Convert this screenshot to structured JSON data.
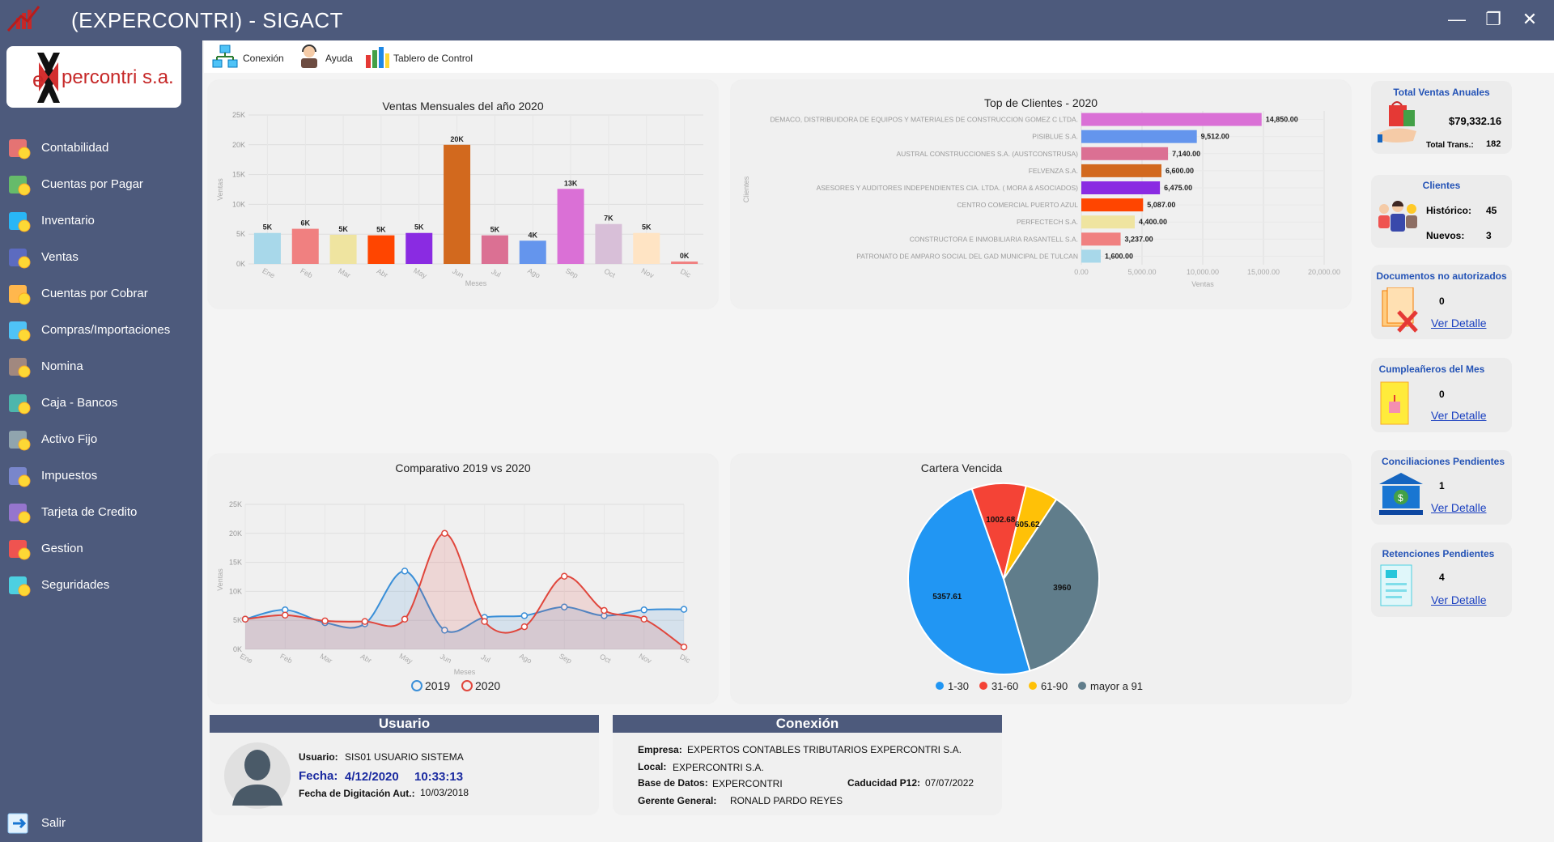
{
  "window": {
    "title": "(EXPERCONTRI) - SIGACT",
    "controls": [
      "—",
      "❐",
      "✕"
    ]
  },
  "logo": {
    "text_e": "e",
    "text_rest": "percontri s.a."
  },
  "sidebar": {
    "items": [
      {
        "label": "Contabilidad",
        "icon": "calculator-icon"
      },
      {
        "label": "Cuentas por Pagar",
        "icon": "money-bag-icon"
      },
      {
        "label": "Inventario",
        "icon": "inventory-icon"
      },
      {
        "label": "Ventas",
        "icon": "sales-icon"
      },
      {
        "label": "Cuentas por Cobrar",
        "icon": "hand-coin-icon"
      },
      {
        "label": "Compras/Importaciones",
        "icon": "computer-icon"
      },
      {
        "label": "Nomina",
        "icon": "payroll-icon"
      },
      {
        "label": "Caja - Bancos",
        "icon": "cash-icon"
      },
      {
        "label": "Activo Fijo",
        "icon": "desk-icon"
      },
      {
        "label": "Impuestos",
        "icon": "tax-icon"
      },
      {
        "label": "Tarjeta de Credito",
        "icon": "credit-card-icon"
      },
      {
        "label": "Gestion",
        "icon": "pie-icon"
      },
      {
        "label": "Seguridades",
        "icon": "monitor-icon"
      }
    ],
    "exit_label": "Salir"
  },
  "toolbar": {
    "conexion": "Conexión",
    "ayuda": "Ayuda",
    "tablero": "Tablero de Control"
  },
  "colors": {
    "titlebar": "#4d5a7c",
    "sidebar": "#4d5a7c",
    "kpi_title": "#2453b6",
    "link": "#1a40c0"
  },
  "chart_data": [
    {
      "type": "bar",
      "title": "Ventas Mensuales del año 2020",
      "xlabel": "Meses",
      "ylabel": "Ventas",
      "categories": [
        "Ene",
        "Feb",
        "Mar",
        "Abr",
        "May",
        "Jun",
        "Jul",
        "Ago",
        "Sep",
        "Oct",
        "Nov",
        "Dic"
      ],
      "values": [
        5200,
        5900,
        4900,
        4800,
        5200,
        20000,
        4800,
        3900,
        12600,
        6700,
        5200,
        400
      ],
      "data_labels": [
        "5K",
        "6K",
        "5K",
        "5K",
        "5K",
        "20K",
        "5K",
        "4K",
        "13K",
        "7K",
        "5K",
        "0K"
      ],
      "colors": [
        "#a8d8ea",
        "#f08080",
        "#efe4a0",
        "#ff4500",
        "#8a2be2",
        "#d2691e",
        "#db7093",
        "#6495ed",
        "#da70d6",
        "#d8bfd8",
        "#ffe4c4",
        "#f08080"
      ],
      "yticks": [
        "0K",
        "5K",
        "10K",
        "15K",
        "20K",
        "25K"
      ],
      "ylim": [
        0,
        25000
      ],
      "grid": true
    },
    {
      "type": "bar",
      "orientation": "horizontal",
      "title": "Top de Clientes - 2020",
      "xlabel": "Ventas",
      "ylabel": "Clientes",
      "categories": [
        "DEMACO, DISTRIBUIDORA DE EQUIPOS Y MATERIALES DE CONSTRUCCION GOMEZ C LTDA.",
        "PISIBLUE S.A.",
        "AUSTRAL CONSTRUCCIONES S.A. (AUSTCONSTRUSA)",
        "FELVENZA S.A.",
        "ASESORES Y AUDITORES INDEPENDIENTES CIA. LTDA. ( MORA & ASOCIADOS)",
        "CENTRO COMERCIAL PUERTO AZUL",
        "PERFECTECH S.A.",
        "CONSTRUCTORA E INMOBILIARIA RASANTELL S.A.",
        "PATRONATO DE AMPARO SOCIAL DEL GAD MUNICIPAL DE TULCAN"
      ],
      "values": [
        14850,
        9512,
        7140,
        6600,
        6475,
        5087,
        4400,
        3237,
        1600
      ],
      "data_labels": [
        "14,850.00",
        "9,512.00",
        "7,140.00",
        "6,600.00",
        "6,475.00",
        "5,087.00",
        "4,400.00",
        "3,237.00",
        "1,600.00"
      ],
      "colors": [
        "#da70d6",
        "#6495ed",
        "#db7093",
        "#d2691e",
        "#8a2be2",
        "#ff4500",
        "#efe4a0",
        "#f08080",
        "#a8d8ea"
      ],
      "xticks": [
        "0.00",
        "5,000.00",
        "10,000.00",
        "15,000.00",
        "20,000.00"
      ],
      "xlim": [
        0,
        20000
      ],
      "grid": true
    },
    {
      "type": "area",
      "title": "Comparativo 2019 vs 2020",
      "xlabel": "Meses",
      "ylabel": "Ventas",
      "categories": [
        "Ene",
        "Feb",
        "Mar",
        "Abr",
        "May",
        "Jun",
        "Jul",
        "Ago",
        "Sep",
        "Oct",
        "Nov",
        "Dic"
      ],
      "series": [
        {
          "name": "2019",
          "color": "#3a8fd8",
          "values": [
            5200,
            6800,
            4600,
            4400,
            13500,
            3300,
            5500,
            5800,
            7300,
            5800,
            6800,
            6900
          ]
        },
        {
          "name": "2020",
          "color": "#e0463c",
          "values": [
            5200,
            5900,
            4900,
            4800,
            5200,
            20000,
            4800,
            3900,
            12600,
            6700,
            5200,
            400
          ]
        }
      ],
      "yticks": [
        "0K",
        "5K",
        "10K",
        "15K",
        "20K",
        "25K"
      ],
      "ylim": [
        0,
        25000
      ],
      "legend": "bottom",
      "grid": true
    },
    {
      "type": "pie",
      "title": "Cartera Vencida",
      "labels": [
        "1-30",
        "31-60",
        "61-90",
        "mayor a 91"
      ],
      "values": [
        5357.61,
        1002.68,
        605.62,
        3960
      ],
      "data_labels": [
        "5357.61",
        "1002.68",
        "605.62",
        "3960"
      ],
      "colors": [
        "#2196f3",
        "#f44336",
        "#ffc107",
        "#607d8b"
      ],
      "legend": "bottom"
    }
  ],
  "kpis": {
    "ventas": {
      "title": "Total Ventas Anuales",
      "amount": "$79,332.16",
      "trans_label": "Total Trans.:",
      "trans_value": "182"
    },
    "clientes": {
      "title": "Clientes",
      "historico_label": "Histórico:",
      "historico_value": "45",
      "nuevos_label": "Nuevos:",
      "nuevos_value": "3"
    },
    "documentos": {
      "title": "Documentos no autorizados",
      "value": "0",
      "link": "Ver Detalle"
    },
    "cumpleanos": {
      "title": "Cumpleañeros del Mes",
      "value": "0",
      "link": "Ver Detalle"
    },
    "conciliaciones": {
      "title": "Conciliaciones Pendientes",
      "value": "1",
      "link": "Ver Detalle"
    },
    "retenciones": {
      "title": "Retenciones Pendientes",
      "value": "4",
      "link": "Ver Detalle"
    }
  },
  "usuario": {
    "header": "Usuario",
    "usuario_label": "Usuario:",
    "usuario_value": "SIS01 USUARIO SISTEMA",
    "fecha_label": "Fecha:",
    "fecha_value": "4/12/2020",
    "hora_value": "10:33:13",
    "digitacion_label": "Fecha de Digitación Aut.:",
    "digitacion_value": "10/03/2018"
  },
  "conexion": {
    "header": "Conexión",
    "empresa_label": "Empresa:",
    "empresa_value": "EXPERTOS CONTABLES TRIBUTARIOS EXPERCONTRI S.A.",
    "local_label": "Local:",
    "local_value": "EXPERCONTRI S.A.",
    "bd_label": "Base de Datos:",
    "bd_value": "EXPERCONTRI",
    "caducidad_label": "Caducidad P12:",
    "caducidad_value": "07/07/2022",
    "gerente_label": "Gerente General:",
    "gerente_value": "RONALD PARDO REYES"
  }
}
